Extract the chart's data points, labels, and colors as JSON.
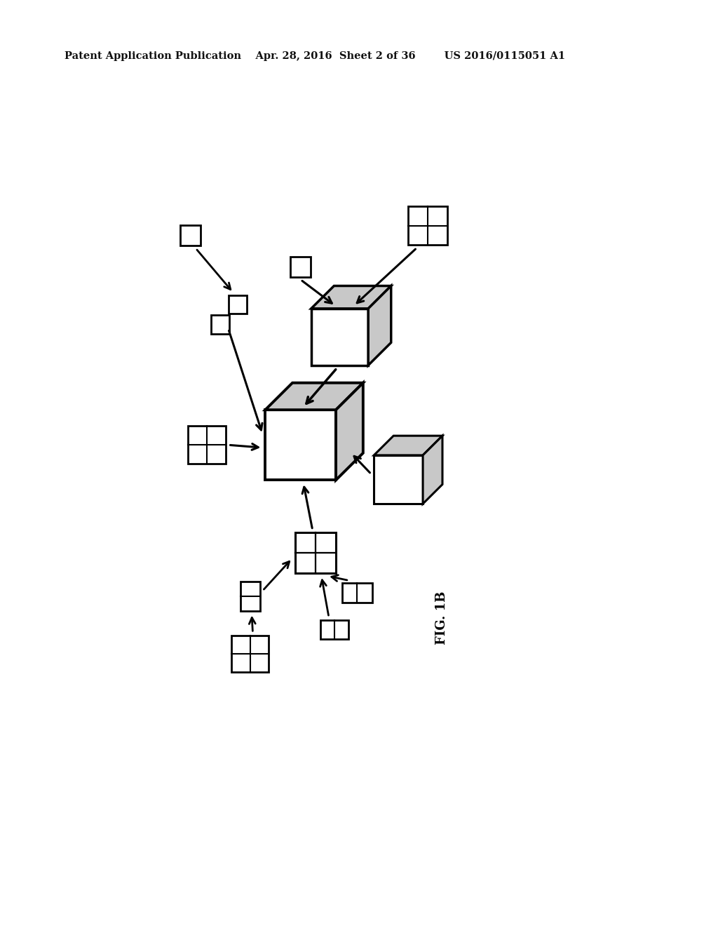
{
  "background_color": "#ffffff",
  "header_text": "Patent Application Publication    Apr. 28, 2016  Sheet 2 of 36        US 2016/0115051 A1",
  "header_fontsize": 10.5,
  "fig_label": "FIG. 1B",
  "fig_label_fontsize": 13,
  "shade_color": "#c8c8c8",
  "line_color": "#000000"
}
